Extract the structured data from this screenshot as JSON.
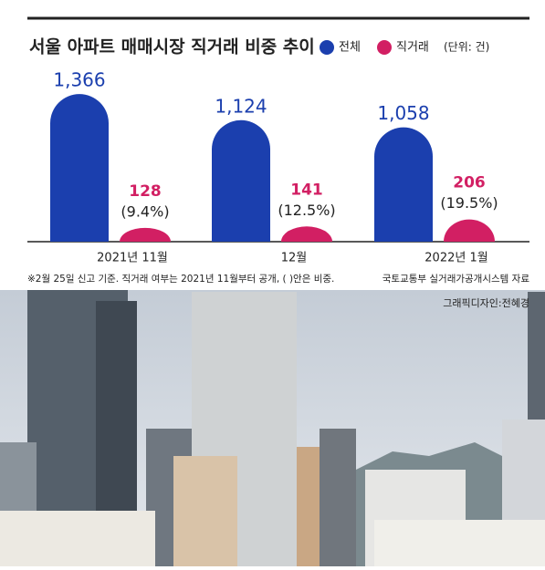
{
  "chart_data": {
    "type": "bar",
    "title": "서울 아파트 매매시장 직거래 비중 추이",
    "unit": "(단위: 건)",
    "categories": [
      "2021년 11월",
      "12월",
      "2022년 1월"
    ],
    "series": [
      {
        "name": "전체",
        "color": "#1b3fae",
        "values": [
          1366,
          1124,
          1058
        ],
        "value_labels": [
          "1,366",
          "1,124",
          "1,058"
        ]
      },
      {
        "name": "직거래",
        "color": "#d21f63",
        "values": [
          128,
          141,
          206
        ]
      }
    ],
    "shares": {
      "values": [
        9.4,
        12.5,
        19.5
      ],
      "value_labels": [
        "(9.4%)",
        "(12.5%)",
        "(19.5%)"
      ]
    },
    "note": "※2월 25일 신고 기준. 직거래 여부는 2021년 11월부터 공개, ( )안은 비중.",
    "source": "국토교통부 실거래가공개시스템 자료",
    "credit": "그래픽디자인:전혜경"
  }
}
